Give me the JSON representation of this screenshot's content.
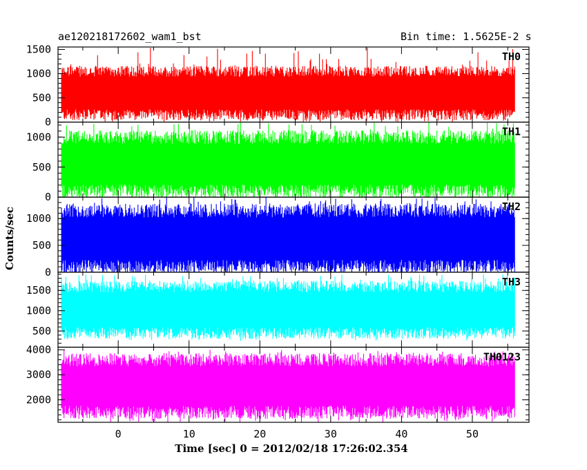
{
  "header": {
    "left_title": "ae120218172602_wam1_bst",
    "right_title": "Bin time: 1.5625E-2 s"
  },
  "chart_data": {
    "type": "line",
    "xlabel": "Time [sec] 0 = 2012/02/18 17:26:02.354",
    "ylabel": "Counts/sec",
    "xlim": [
      -8.5,
      58
    ],
    "x_ticks": [
      0,
      10,
      20,
      30,
      40,
      50
    ],
    "x_range_data": [
      -8,
      56
    ],
    "panels": [
      {
        "label": "TH0",
        "color": "#ff0000",
        "ylim": [
          0,
          1550
        ],
        "y_ticks": [
          0,
          500,
          1000,
          1500
        ],
        "typical_min": 150,
        "typical_max": 1050,
        "peak_min": 0,
        "peak_max": 1550
      },
      {
        "label": "TH1",
        "color": "#00ff00",
        "ylim": [
          0,
          1250
        ],
        "y_ticks": [
          0,
          500,
          1000
        ],
        "typical_min": 100,
        "typical_max": 1000,
        "peak_min": 0,
        "peak_max": 1250
      },
      {
        "label": "TH2",
        "color": "#0000ff",
        "ylim": [
          0,
          1400
        ],
        "y_ticks": [
          0,
          500,
          1000
        ],
        "typical_min": 100,
        "typical_max": 1150,
        "peak_min": 0,
        "peak_max": 1400
      },
      {
        "label": "TH3",
        "color": "#00ffff",
        "ylim": [
          100,
          1950
        ],
        "y_ticks": [
          500,
          1000,
          1500
        ],
        "typical_min": 450,
        "typical_max": 1600,
        "peak_min": 250,
        "peak_max": 1900
      },
      {
        "label": "TH0123",
        "color": "#ff00ff",
        "ylim": [
          1100,
          4100
        ],
        "y_ticks": [
          2000,
          3000,
          4000
        ],
        "typical_min": 1500,
        "typical_max": 3600,
        "peak_min": 1100,
        "peak_max": 4000
      }
    ],
    "x_tick_labels": [
      "0",
      "10",
      "20",
      "30",
      "40",
      "50"
    ],
    "grid": false
  }
}
